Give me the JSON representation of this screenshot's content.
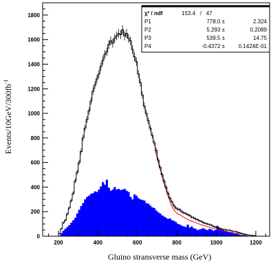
{
  "chart_data": {
    "type": "histogram",
    "title": "",
    "xlabel": "Gluino stransverse mass (GeV)",
    "ylabel_base": "Events/10GeV/300fb",
    "ylabel_sup": "-1",
    "xlim": [
      120,
      1270
    ],
    "ylim": [
      0,
      1900
    ],
    "x_ticks": [
      200,
      400,
      600,
      800,
      1000,
      1200
    ],
    "y_ticks": [
      0,
      200,
      400,
      600,
      800,
      1000,
      1200,
      1400,
      1600,
      1800
    ],
    "bin_width": 10,
    "series": [
      {
        "kind": "filled-histogram",
        "color": "#0000ff",
        "x": [
          200,
          210,
          220,
          230,
          240,
          250,
          260,
          270,
          280,
          290,
          300,
          310,
          320,
          330,
          340,
          350,
          360,
          370,
          380,
          390,
          400,
          410,
          420,
          430,
          440,
          450,
          460,
          470,
          480,
          490,
          500,
          510,
          520,
          530,
          540,
          550,
          560,
          570,
          580,
          590,
          600,
          610,
          620,
          630,
          640,
          650,
          660,
          670,
          680,
          690,
          700,
          710,
          720,
          730,
          740,
          750,
          760,
          770,
          780,
          790,
          800,
          810,
          820,
          830,
          840,
          850,
          860,
          870,
          880,
          890,
          900,
          910,
          920,
          930,
          940,
          950,
          960,
          970,
          980,
          990,
          1000,
          1010,
          1020,
          1030,
          1040,
          1050,
          1060,
          1070,
          1080,
          1090,
          1100,
          1110,
          1120,
          1130,
          1140,
          1150,
          1160,
          1170
        ],
        "values": [
          5,
          25,
          45,
          60,
          75,
          90,
          110,
          130,
          150,
          185,
          215,
          245,
          270,
          300,
          320,
          330,
          345,
          350,
          365,
          360,
          380,
          405,
          440,
          420,
          460,
          395,
          370,
          380,
          400,
          380,
          385,
          375,
          380,
          385,
          370,
          360,
          320,
          300,
          340,
          330,
          310,
          300,
          295,
          290,
          270,
          265,
          250,
          235,
          230,
          210,
          195,
          185,
          170,
          160,
          150,
          140,
          145,
          130,
          125,
          115,
          100,
          95,
          85,
          80,
          75,
          95,
          70,
          80,
          65,
          60,
          50,
          55,
          60,
          65,
          55,
          50,
          60,
          55,
          45,
          50,
          85,
          70,
          55,
          50,
          45,
          40,
          35,
          30,
          25,
          20,
          20,
          15,
          10,
          10,
          8,
          5,
          3,
          2
        ]
      },
      {
        "kind": "step-histogram-with-errors",
        "color": "#000000",
        "x": [
          200,
          210,
          220,
          230,
          240,
          250,
          260,
          270,
          280,
          290,
          300,
          310,
          320,
          330,
          340,
          350,
          360,
          370,
          380,
          390,
          400,
          410,
          420,
          430,
          440,
          450,
          460,
          470,
          480,
          490,
          500,
          510,
          520,
          530,
          540,
          550,
          560,
          570,
          580,
          590,
          600,
          610,
          620,
          630,
          640,
          650,
          660,
          670,
          680,
          690,
          700,
          710,
          720,
          730,
          740,
          750,
          760,
          770,
          780,
          790,
          800,
          810,
          820,
          830,
          840,
          850,
          860,
          870,
          880,
          890,
          900,
          910,
          920,
          930,
          940,
          950,
          960,
          970,
          980,
          990,
          1000,
          1010,
          1020,
          1030,
          1040,
          1050,
          1060,
          1070,
          1080,
          1090,
          1100,
          1110,
          1120,
          1130,
          1140,
          1150,
          1160,
          1170,
          1180,
          1190
        ],
        "values": [
          20,
          60,
          110,
          130,
          180,
          230,
          290,
          350,
          450,
          520,
          600,
          690,
          800,
          880,
          950,
          1020,
          1100,
          1180,
          1230,
          1280,
          1320,
          1380,
          1430,
          1480,
          1500,
          1560,
          1590,
          1570,
          1610,
          1630,
          1650,
          1640,
          1680,
          1630,
          1650,
          1610,
          1590,
          1520,
          1460,
          1420,
          1320,
          1250,
          1150,
          1060,
          1000,
          940,
          880,
          820,
          760,
          700,
          620,
          560,
          500,
          450,
          400,
          350,
          310,
          280,
          250,
          230,
          220,
          215,
          200,
          190,
          185,
          175,
          170,
          155,
          150,
          140,
          135,
          125,
          120,
          110,
          105,
          100,
          95,
          90,
          80,
          75,
          70,
          65,
          60,
          55,
          55,
          50,
          50,
          45,
          40,
          40,
          35,
          30,
          25,
          20,
          15,
          12,
          10,
          8,
          6,
          5
        ]
      },
      {
        "kind": "fit-curve",
        "color": "#ff0000",
        "x": [
          690,
          700,
          710,
          720,
          730,
          740,
          750,
          760,
          770,
          780,
          790,
          800,
          820,
          840,
          860,
          880,
          900,
          920,
          940,
          960,
          980,
          1000,
          1020,
          1040,
          1060,
          1080,
          1100,
          1120,
          1140,
          1160
        ],
        "values": [
          700,
          640,
          580,
          520,
          460,
          400,
          350,
          305,
          260,
          228,
          205,
          188,
          170,
          150,
          132,
          120,
          108,
          95,
          85,
          75,
          66,
          58,
          50,
          42,
          36,
          30,
          25,
          20,
          16,
          12
        ]
      }
    ],
    "stats_box": {
      "header_label": "χ² / ndf",
      "header_value": "153.4   /   47",
      "rows": [
        {
          "name": "P1",
          "value": "778.0 ±",
          "error": "2.324"
        },
        {
          "name": "P2",
          "value": "5.293 ±",
          "error": "0.2089"
        },
        {
          "name": "P3",
          "value": "539.5 ±",
          "error": "14.75"
        },
        {
          "name": "P4",
          "value": "-0.4372 ±",
          "error": "0.1424E-01"
        }
      ]
    },
    "grid": false,
    "legend": "none"
  }
}
